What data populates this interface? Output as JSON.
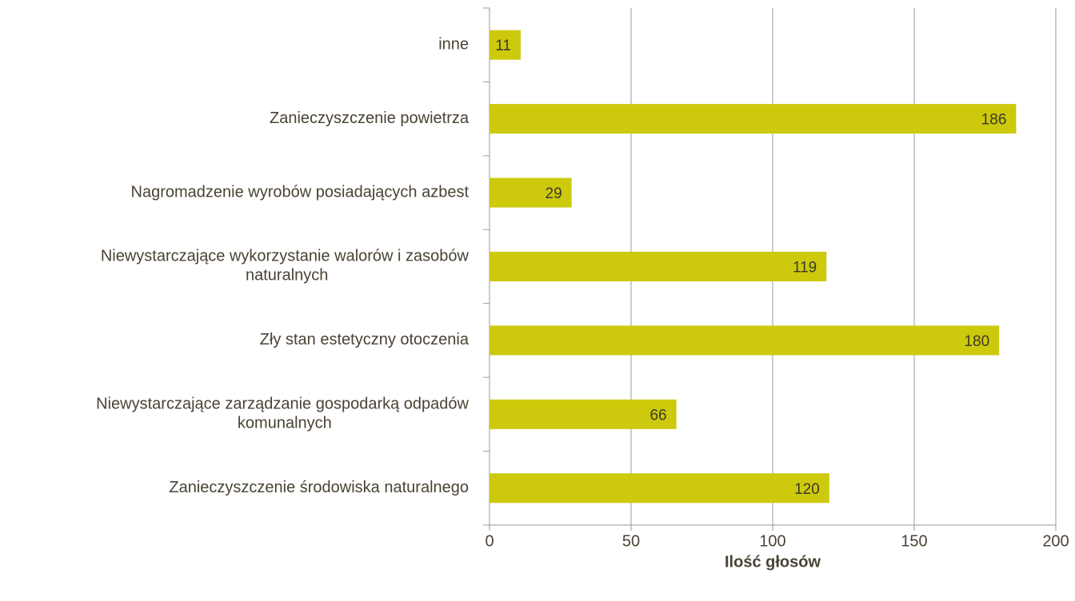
{
  "chart_data": {
    "type": "barh",
    "categories": [
      "inne",
      "Zanieczyszczenie powietrza",
      "Nagromadzenie wyrobów posiadających azbest",
      "Niewystarczające wykorzystanie walorów i zasobów naturalnych",
      "Zły stan estetyczny otoczenia",
      "Niewystarczające zarządzanie gospodarką odpadów komunalnych",
      "Zanieczyszczenie środowiska naturalnego"
    ],
    "values": [
      11,
      186,
      29,
      119,
      180,
      66,
      120
    ],
    "color": "#cdc90c",
    "xlim": [
      0,
      200
    ],
    "xticks": [
      0,
      50,
      100,
      150,
      200
    ],
    "x_label": "Ilość głosów",
    "grid": true
  }
}
